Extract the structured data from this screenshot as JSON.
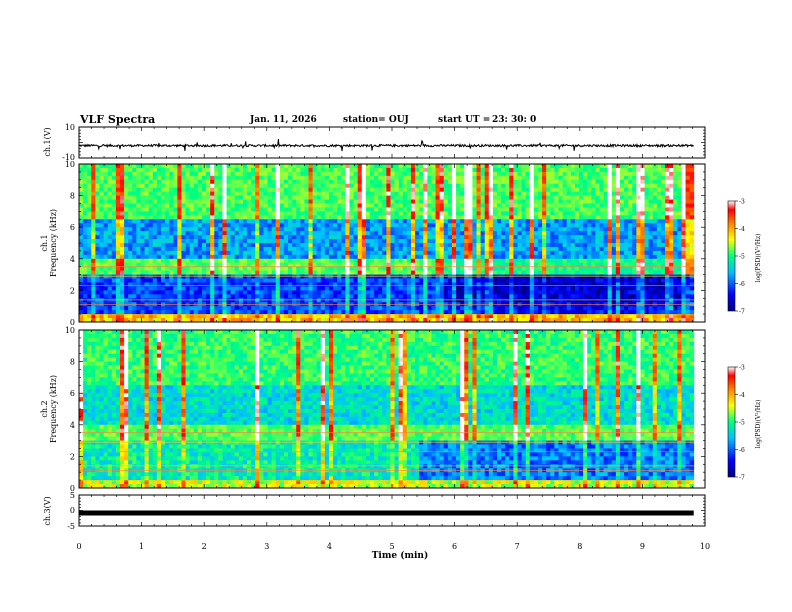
{
  "header": {
    "title": "VLF Spectra",
    "date": "Jan. 11, 2026",
    "station": "station= OUJ",
    "start_label": "start  UT  =",
    "start_time": "23: 30: 0"
  },
  "colors": {
    "background": "#ffffff",
    "axis": "#000000",
    "colormap": [
      "#000080",
      "#0000ff",
      "#00c0ff",
      "#00ff80",
      "#ffff00",
      "#ff8000",
      "#ff0000",
      "#ffffff"
    ]
  },
  "chart_data": [
    {
      "type": "line",
      "name": "waveform-ch1",
      "ylabel": "ch.1(V)",
      "ylim": [
        -10,
        10
      ],
      "yticks": [
        "10",
        "-10"
      ],
      "xlim": [
        0,
        10
      ],
      "description_values": "near-constant signal around -2 V with small spikes",
      "level": -2
    },
    {
      "type": "heatmap",
      "name": "spectrogram-ch1",
      "ylabel_top": "ch.1",
      "ylabel": "Frequency (kHz)",
      "ylim": [
        0,
        10
      ],
      "yticks": [
        "0",
        "2",
        "4",
        "6",
        "8",
        "10"
      ],
      "xlim": [
        0,
        10
      ],
      "data_end_min": 9.82,
      "colorbar": {
        "label": "log(PSD)(V²/Hz)",
        "range": [
          -7,
          -3
        ],
        "ticks": [
          "-3",
          "-4",
          "-5",
          "-6",
          "-7"
        ]
      }
    },
    {
      "type": "heatmap",
      "name": "spectrogram-ch2",
      "ylabel_top": "ch.2",
      "ylabel": "Frequency (kHz)",
      "ylim": [
        0,
        10
      ],
      "yticks": [
        "0",
        "2",
        "4",
        "6",
        "8",
        "10"
      ],
      "xlim": [
        0,
        10
      ],
      "data_end_min": 9.82,
      "colorbar": {
        "label": "log(PSD)(V²/Hz)",
        "range": [
          -7,
          -3
        ],
        "ticks": [
          "-3",
          "-4",
          "-5",
          "-6",
          "-7"
        ]
      }
    },
    {
      "type": "line",
      "name": "waveform-ch3",
      "ylabel": "ch.3(V)",
      "ylim": [
        -5,
        5
      ],
      "yticks": [
        "5",
        "0",
        "-5"
      ],
      "xlim": [
        0,
        10
      ],
      "level": -0.8,
      "xlabel": "Time (min)",
      "xticks": [
        "0",
        "1",
        "2",
        "3",
        "4",
        "5",
        "6",
        "7",
        "8",
        "9",
        "10"
      ]
    }
  ]
}
